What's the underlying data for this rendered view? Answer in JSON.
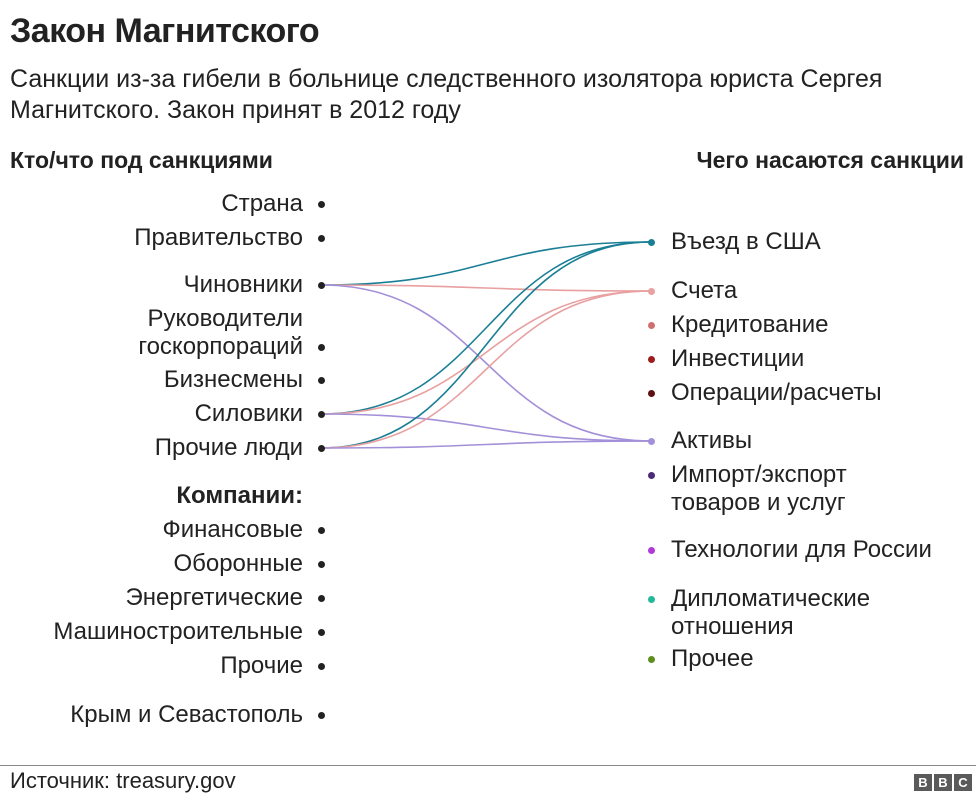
{
  "title": "Закон Магнитского",
  "subtitle": "Санкции из-за гибели в больнице следственного изолятора юриста Сергея Магнитского. Закон принят в 2012 году",
  "left_header": "Кто/что под санкциями",
  "right_header": "Чего насаются санкции",
  "left_items": [
    {
      "id": "country",
      "lines": [
        "Страна"
      ]
    },
    {
      "id": "government",
      "lines": [
        "Правительство"
      ]
    },
    {
      "id": "officials",
      "lines": [
        "Чиновники"
      ]
    },
    {
      "id": "corp-heads",
      "lines": [
        "Руководители",
        "госкорпораций"
      ]
    },
    {
      "id": "businessmen",
      "lines": [
        "Бизнесмены"
      ]
    },
    {
      "id": "siloviki",
      "lines": [
        "Силовики"
      ]
    },
    {
      "id": "other-people",
      "lines": [
        "Прочие люди"
      ]
    },
    {
      "id": "companies-heading",
      "lines": [
        "Компании:"
      ],
      "heading": true
    },
    {
      "id": "financial",
      "lines": [
        "Финансовые"
      ]
    },
    {
      "id": "defense",
      "lines": [
        "Оборонные"
      ]
    },
    {
      "id": "energy",
      "lines": [
        "Энергетические"
      ]
    },
    {
      "id": "machine",
      "lines": [
        "Машиностроительные"
      ]
    },
    {
      "id": "other-companies",
      "lines": [
        "Прочие"
      ]
    },
    {
      "id": "crimea",
      "lines": [
        "Крым и Севастополь"
      ]
    }
  ],
  "right_items": [
    {
      "id": "us-entry",
      "lines": [
        "Въезд в США"
      ],
      "color": "#1a7f95"
    },
    {
      "id": "accounts",
      "lines": [
        "Счета"
      ],
      "color": "#e8a0a0"
    },
    {
      "id": "lending",
      "lines": [
        "Кредитование"
      ],
      "color": "#d0706e"
    },
    {
      "id": "investments",
      "lines": [
        "Инвестиции"
      ],
      "color": "#9b1d1d"
    },
    {
      "id": "operations",
      "lines": [
        "Операции/расчеты"
      ],
      "color": "#5e0f0f"
    },
    {
      "id": "assets",
      "lines": [
        "Активы"
      ],
      "color": "#a490d8"
    },
    {
      "id": "import-export",
      "lines": [
        "Импорт/экспорт",
        "товаров и услуг"
      ],
      "color": "#4b2a7a"
    },
    {
      "id": "technology",
      "lines": [
        "Технологии для России"
      ],
      "color": "#b03ad8"
    },
    {
      "id": "diplomatic",
      "lines": [
        "Дипломатические",
        "отношения"
      ],
      "color": "#22b89a"
    },
    {
      "id": "other",
      "lines": [
        "Прочее"
      ],
      "color": "#5e8f1e"
    }
  ],
  "links": [
    {
      "from": "officials",
      "to": "us-entry",
      "color": "#1a7f95"
    },
    {
      "from": "officials",
      "to": "accounts",
      "color": "#e8a0a0"
    },
    {
      "from": "officials",
      "to": "assets",
      "color": "#a490d8"
    },
    {
      "from": "siloviki",
      "to": "us-entry",
      "color": "#1a7f95"
    },
    {
      "from": "siloviki",
      "to": "accounts",
      "color": "#e8a0a0"
    },
    {
      "from": "siloviki",
      "to": "assets",
      "color": "#a490d8"
    },
    {
      "from": "other-people",
      "to": "us-entry",
      "color": "#1a7f95"
    },
    {
      "from": "other-people",
      "to": "accounts",
      "color": "#e8a0a0"
    },
    {
      "from": "other-people",
      "to": "assets",
      "color": "#a490d8"
    }
  ],
  "source": "Источник: treasury.gov",
  "logo_letters": [
    "B",
    "B",
    "C"
  ]
}
